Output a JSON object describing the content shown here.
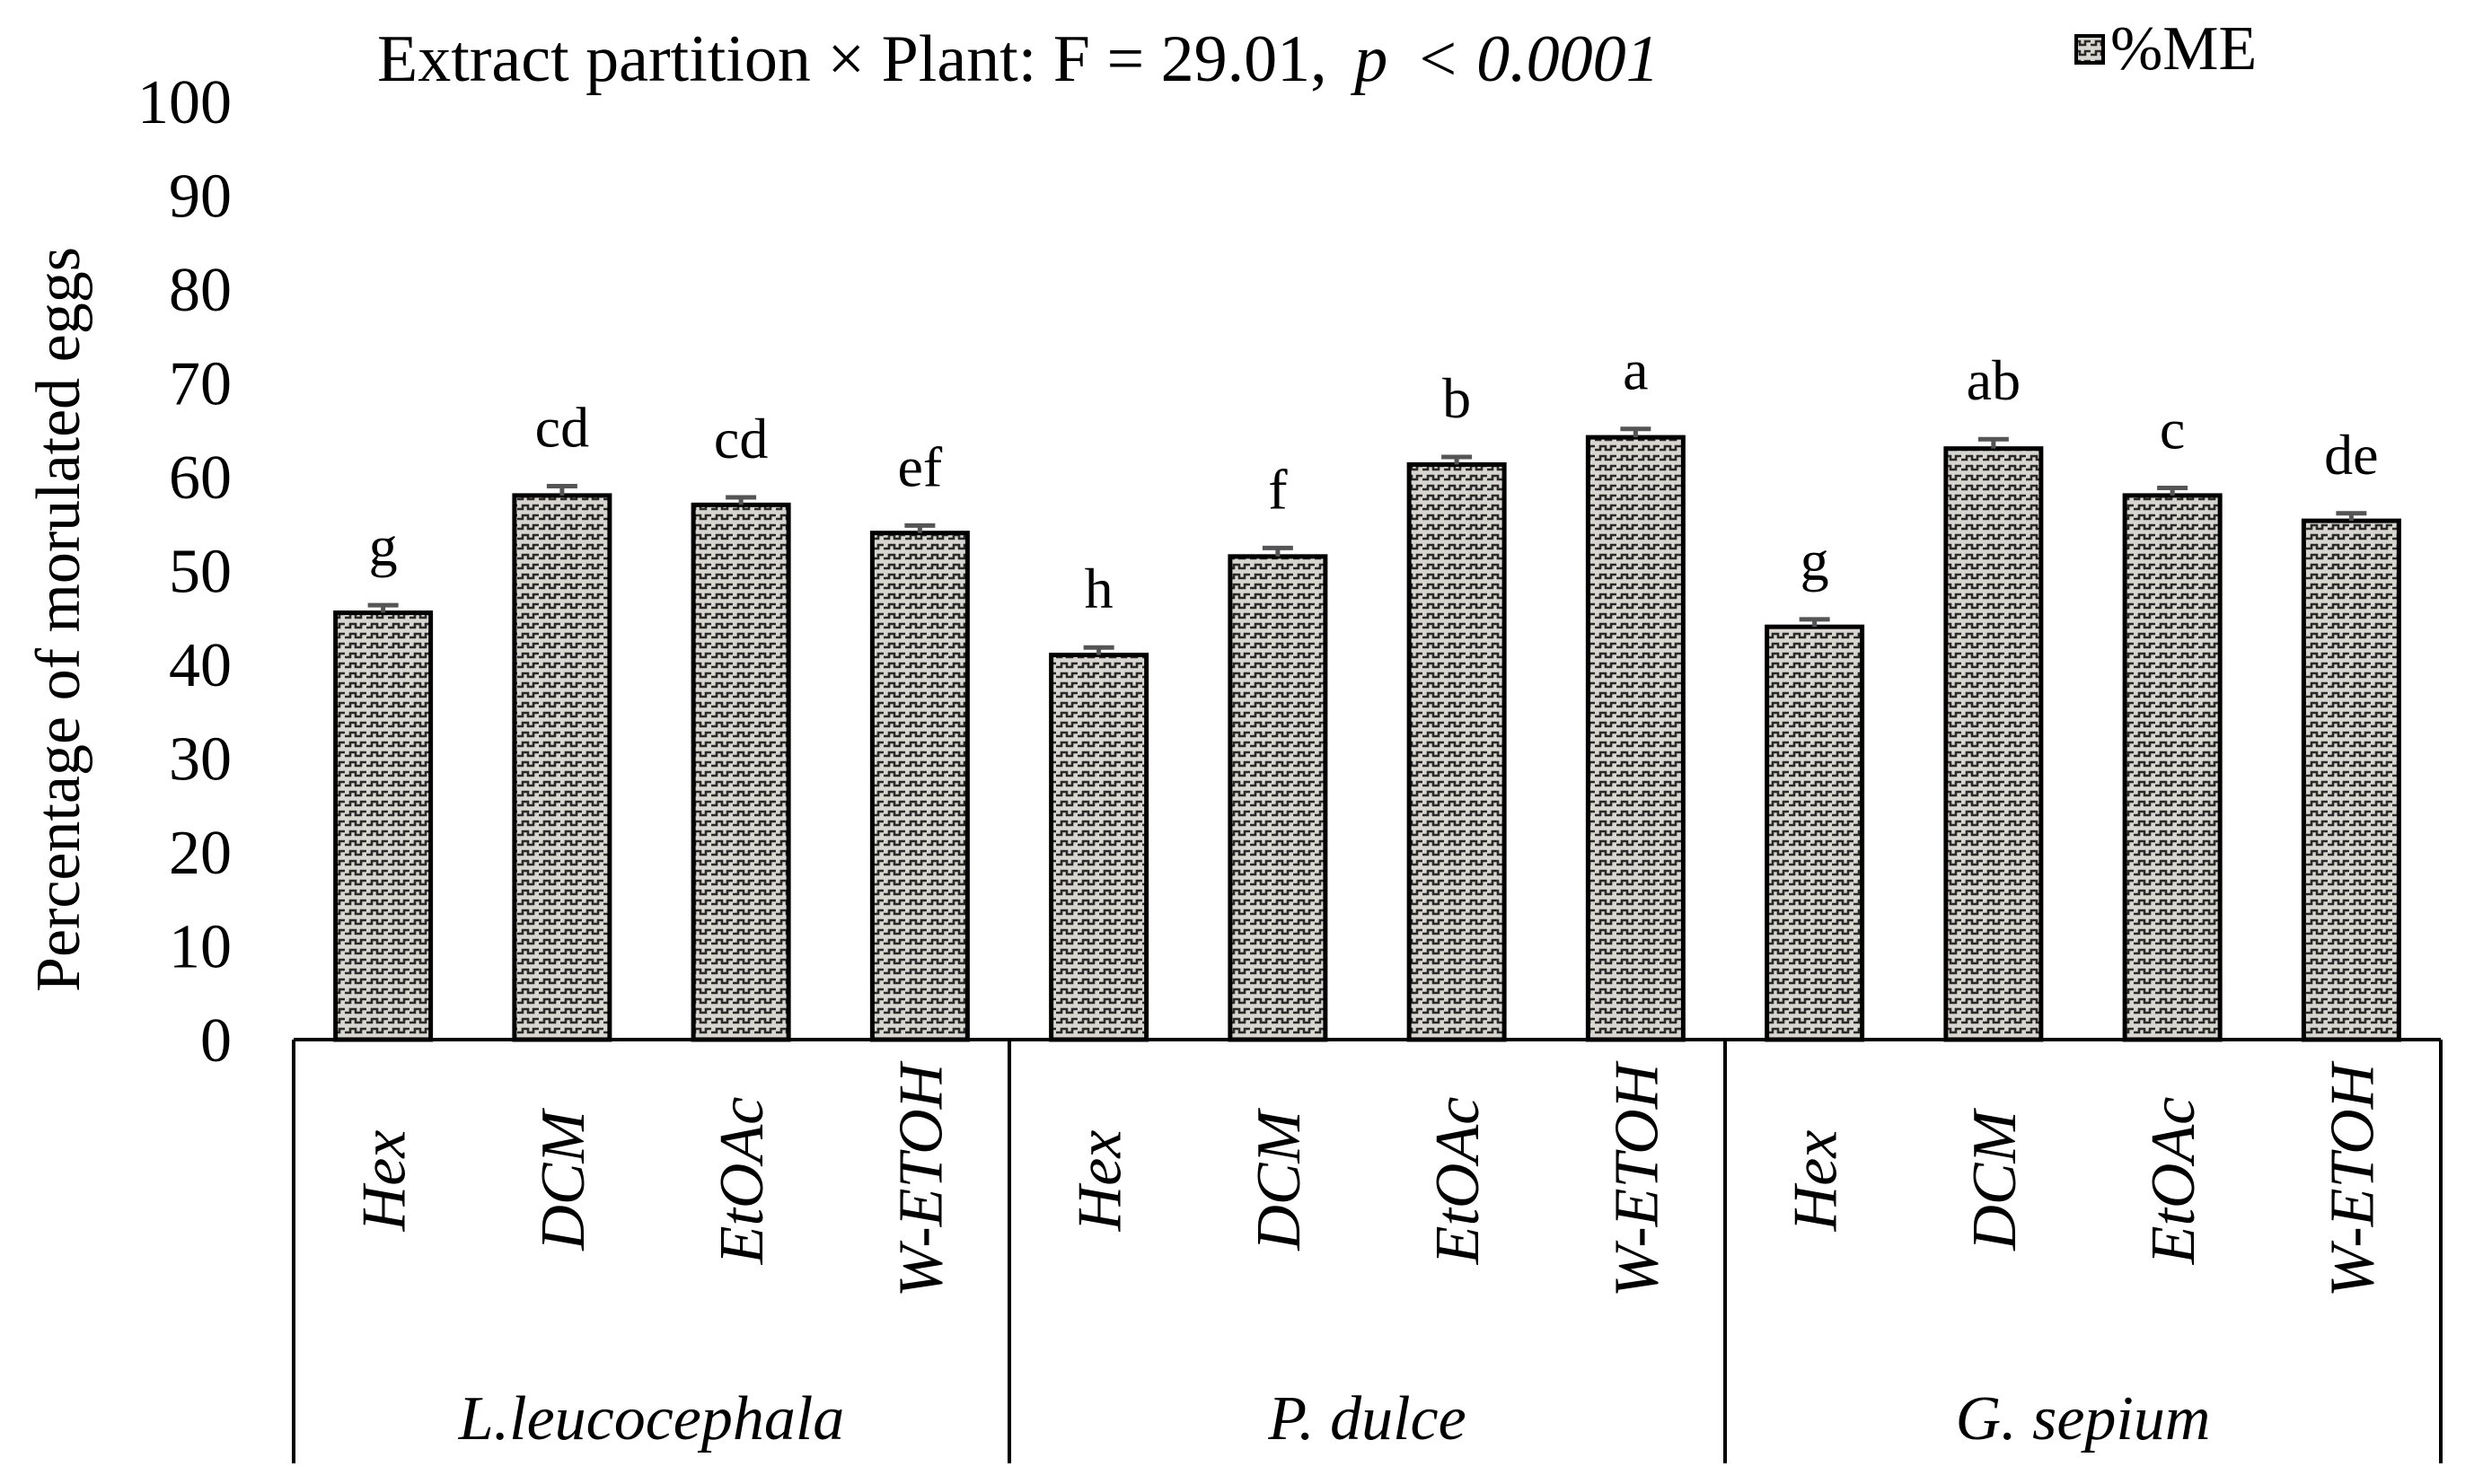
{
  "chart_data": {
    "type": "bar",
    "title_main": "Extract partition × Plant: F = 29.01,",
    "title_p": "p",
    "title_p_value": "< 0.0001",
    "ylabel": "Percentage of morulated eggs",
    "xlabel": "",
    "ylim": [
      0,
      100
    ],
    "yticks": [
      "0",
      "10",
      "20",
      "30",
      "40",
      "50",
      "60",
      "70",
      "80",
      "90",
      "100"
    ],
    "legend": {
      "label": "%ME",
      "position": "top-right"
    },
    "grid": false,
    "groups": [
      {
        "name": "L.leucocephala",
        "bars": [
          {
            "category": "Hex",
            "value": 45.5,
            "error": 0.8,
            "letter": "g"
          },
          {
            "category": "DCM",
            "value": 58.0,
            "error": 1.0,
            "letter": "cd"
          },
          {
            "category": "EtOAc",
            "value": 57.0,
            "error": 0.8,
            "letter": "cd"
          },
          {
            "category": "W-ETOH",
            "value": 54.0,
            "error": 0.8,
            "letter": "ef"
          }
        ]
      },
      {
        "name": "P. dulce",
        "bars": [
          {
            "category": "Hex",
            "value": 41.0,
            "error": 0.8,
            "letter": "h"
          },
          {
            "category": "DCM",
            "value": 51.5,
            "error": 0.9,
            "letter": "f"
          },
          {
            "category": "EtOAc",
            "value": 61.3,
            "error": 0.8,
            "letter": "b"
          },
          {
            "category": "W-ETOH",
            "value": 64.2,
            "error": 0.9,
            "letter": "a"
          }
        ]
      },
      {
        "name": "G. sepium",
        "bars": [
          {
            "category": "Hex",
            "value": 44.0,
            "error": 0.8,
            "letter": "g"
          },
          {
            "category": "DCM",
            "value": 63.0,
            "error": 1.0,
            "letter": "ab"
          },
          {
            "category": "EtOAc",
            "value": 58.0,
            "error": 0.8,
            "letter": "c"
          },
          {
            "category": "W-ETOH",
            "value": 55.3,
            "error": 0.8,
            "letter": "de"
          }
        ]
      }
    ]
  },
  "colors": {
    "bar_fill": "#d9d6d0",
    "bar_pattern": "#2a2a2a",
    "bar_stroke": "#000000",
    "error_bar": "#555555",
    "axis": "#000000"
  }
}
